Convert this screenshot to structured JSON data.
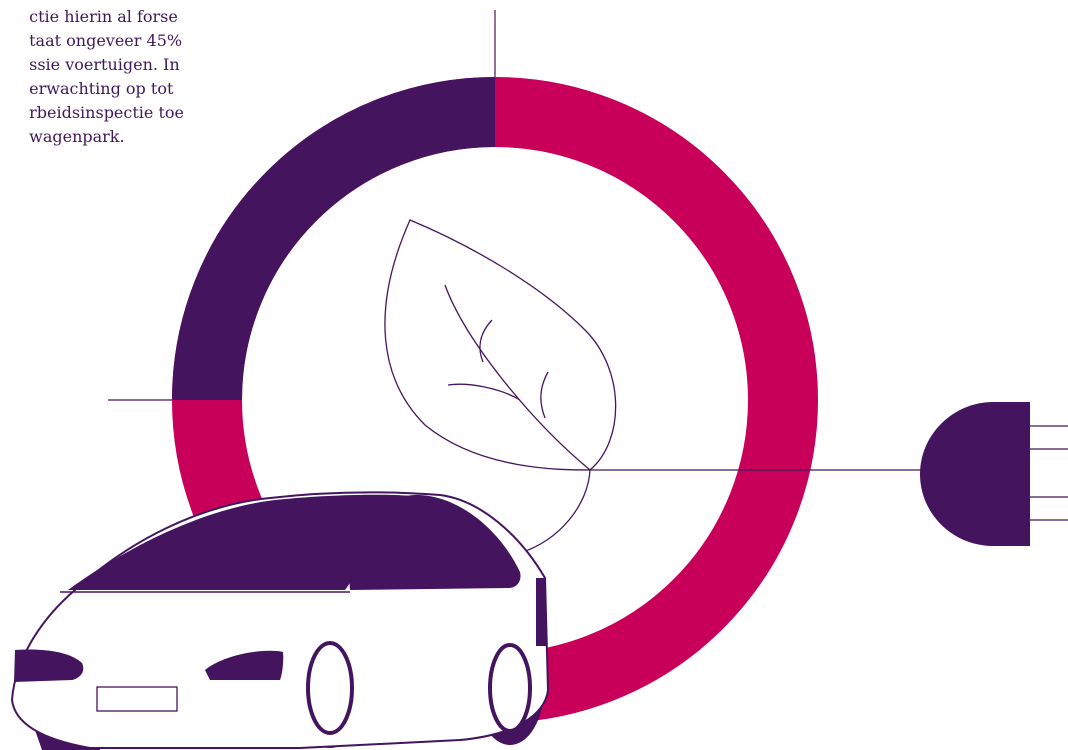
{
  "intro": {
    "lines": [
      "ctie hierin al forse",
      "taat ongeveer 45%",
      "ssie voertuigen. In",
      "erwachting op tot",
      "rbeidsinspectie toe",
      "wagenpark."
    ]
  },
  "donut": {
    "share_percent": 45,
    "colors": {
      "primary": "#c8005a",
      "secondary": "#45145e"
    }
  },
  "icons": [
    "leaf-icon",
    "car-icon",
    "plug-icon"
  ],
  "colors": {
    "purple": "#45145e",
    "magenta": "#c8005a",
    "text": "#40175a"
  }
}
